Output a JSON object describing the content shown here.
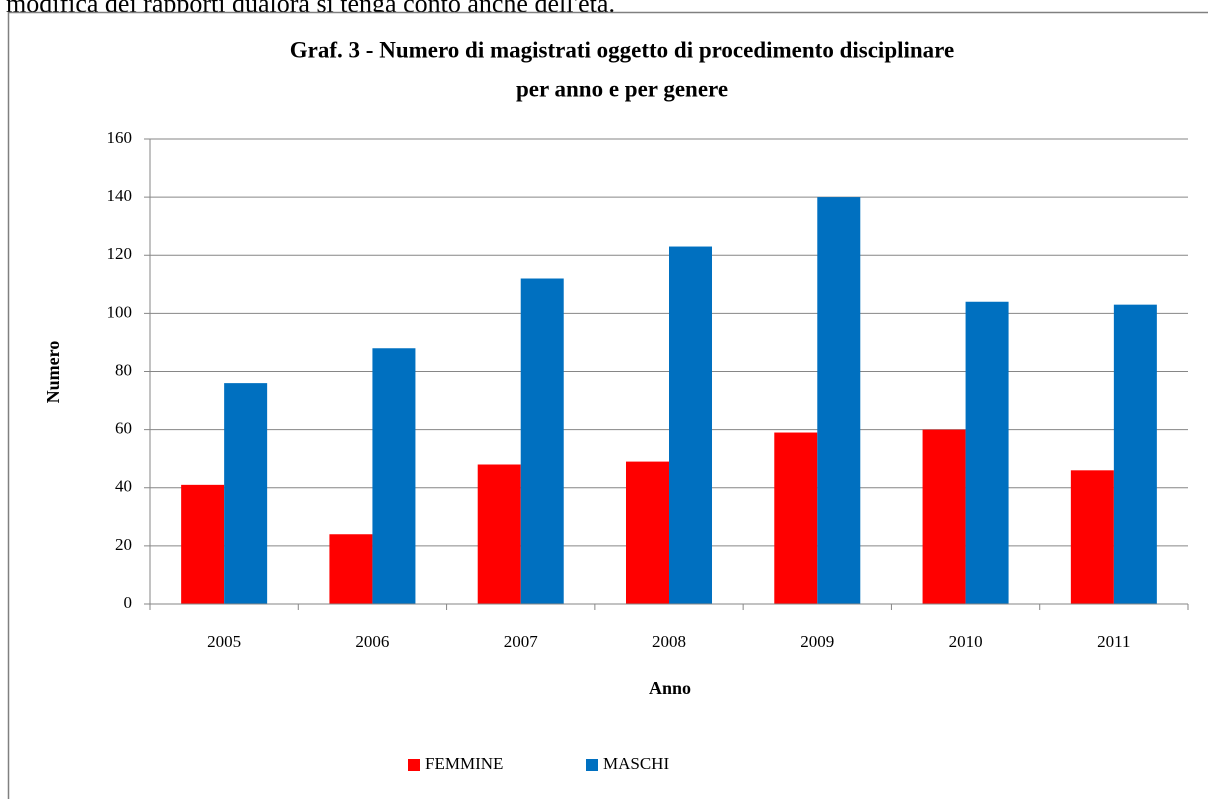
{
  "page_text": "modifica dei rapporti qualora si tenga conto anche dell'età.",
  "chart_data": {
    "type": "bar",
    "title": [
      "Graf. 3 - Numero di magistrati oggetto di procedimento disciplinare",
      "per anno e per genere"
    ],
    "x_label": "Anno",
    "y_label": "Numero",
    "categories": [
      "2005",
      "2006",
      "2007",
      "2008",
      "2009",
      "2010",
      "2011"
    ],
    "series": [
      {
        "name": "FEMMINE",
        "color": "#ff0000",
        "values": [
          41,
          24,
          48,
          49,
          59,
          60,
          46
        ]
      },
      {
        "name": "MASCHI",
        "color": "#0070c0",
        "values": [
          76,
          88,
          112,
          123,
          140,
          104,
          103
        ]
      }
    ],
    "ylim": [
      0,
      160
    ],
    "yticks": [
      0,
      20,
      40,
      60,
      80,
      100,
      120,
      140,
      160
    ],
    "grid": true,
    "legend": "bottom"
  }
}
